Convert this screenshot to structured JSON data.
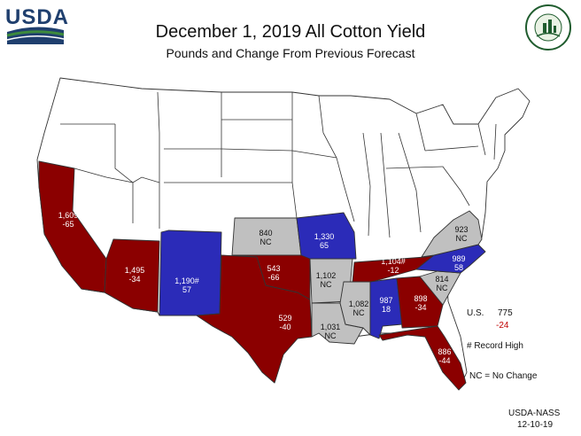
{
  "header": {
    "logo_text": "USDA",
    "seal_text": "AGRICULTURE COUNTS",
    "title": "December 1, 2019 All Cotton Yield",
    "subtitle": "Pounds and Change From Previous Forecast"
  },
  "colors": {
    "decrease": "#8b0000",
    "increase": "#2b2bb8",
    "no_change": "#c0c0c0",
    "other": "#ffffff"
  },
  "states": [
    {
      "name": "California",
      "yield": "1,609",
      "change": "-65",
      "status": "decrease"
    },
    {
      "name": "Arizona",
      "yield": "1,495",
      "change": "-34",
      "status": "decrease"
    },
    {
      "name": "New Mexico",
      "yield": "1,190#",
      "change": "57",
      "status": "increase"
    },
    {
      "name": "Texas",
      "yield": "529",
      "change": "-40",
      "status": "decrease"
    },
    {
      "name": "Oklahoma",
      "yield": "543",
      "change": "-66",
      "status": "decrease"
    },
    {
      "name": "Kansas",
      "yield": "840",
      "change": "NC",
      "status": "no_change"
    },
    {
      "name": "Missouri",
      "yield": "1,330",
      "change": "65",
      "status": "increase"
    },
    {
      "name": "Arkansas",
      "yield": "1,102",
      "change": "NC",
      "status": "no_change"
    },
    {
      "name": "Louisiana",
      "yield": "1,031",
      "change": "NC",
      "status": "no_change"
    },
    {
      "name": "Mississippi",
      "yield": "1,082",
      "change": "NC",
      "status": "no_change"
    },
    {
      "name": "Tennessee",
      "yield": "1,104#",
      "change": "-12",
      "status": "decrease"
    },
    {
      "name": "Alabama",
      "yield": "987",
      "change": "18",
      "status": "increase"
    },
    {
      "name": "Georgia",
      "yield": "898",
      "change": "-34",
      "status": "decrease"
    },
    {
      "name": "Florida",
      "yield": "886",
      "change": "-44",
      "status": "decrease"
    },
    {
      "name": "South Carolina",
      "yield": "814",
      "change": "NC",
      "status": "no_change"
    },
    {
      "name": "North Carolina",
      "yield": "989",
      "change": "58",
      "status": "increase"
    },
    {
      "name": "Virginia",
      "yield": "923",
      "change": "NC",
      "status": "no_change"
    }
  ],
  "legend": {
    "us_label": "U.S.",
    "us_value": "775",
    "us_change": "-24",
    "record_note": "# Record High",
    "nc_note": "NC = No Change"
  },
  "footer": {
    "source": "USDA-NASS",
    "date": "12-10-19"
  }
}
